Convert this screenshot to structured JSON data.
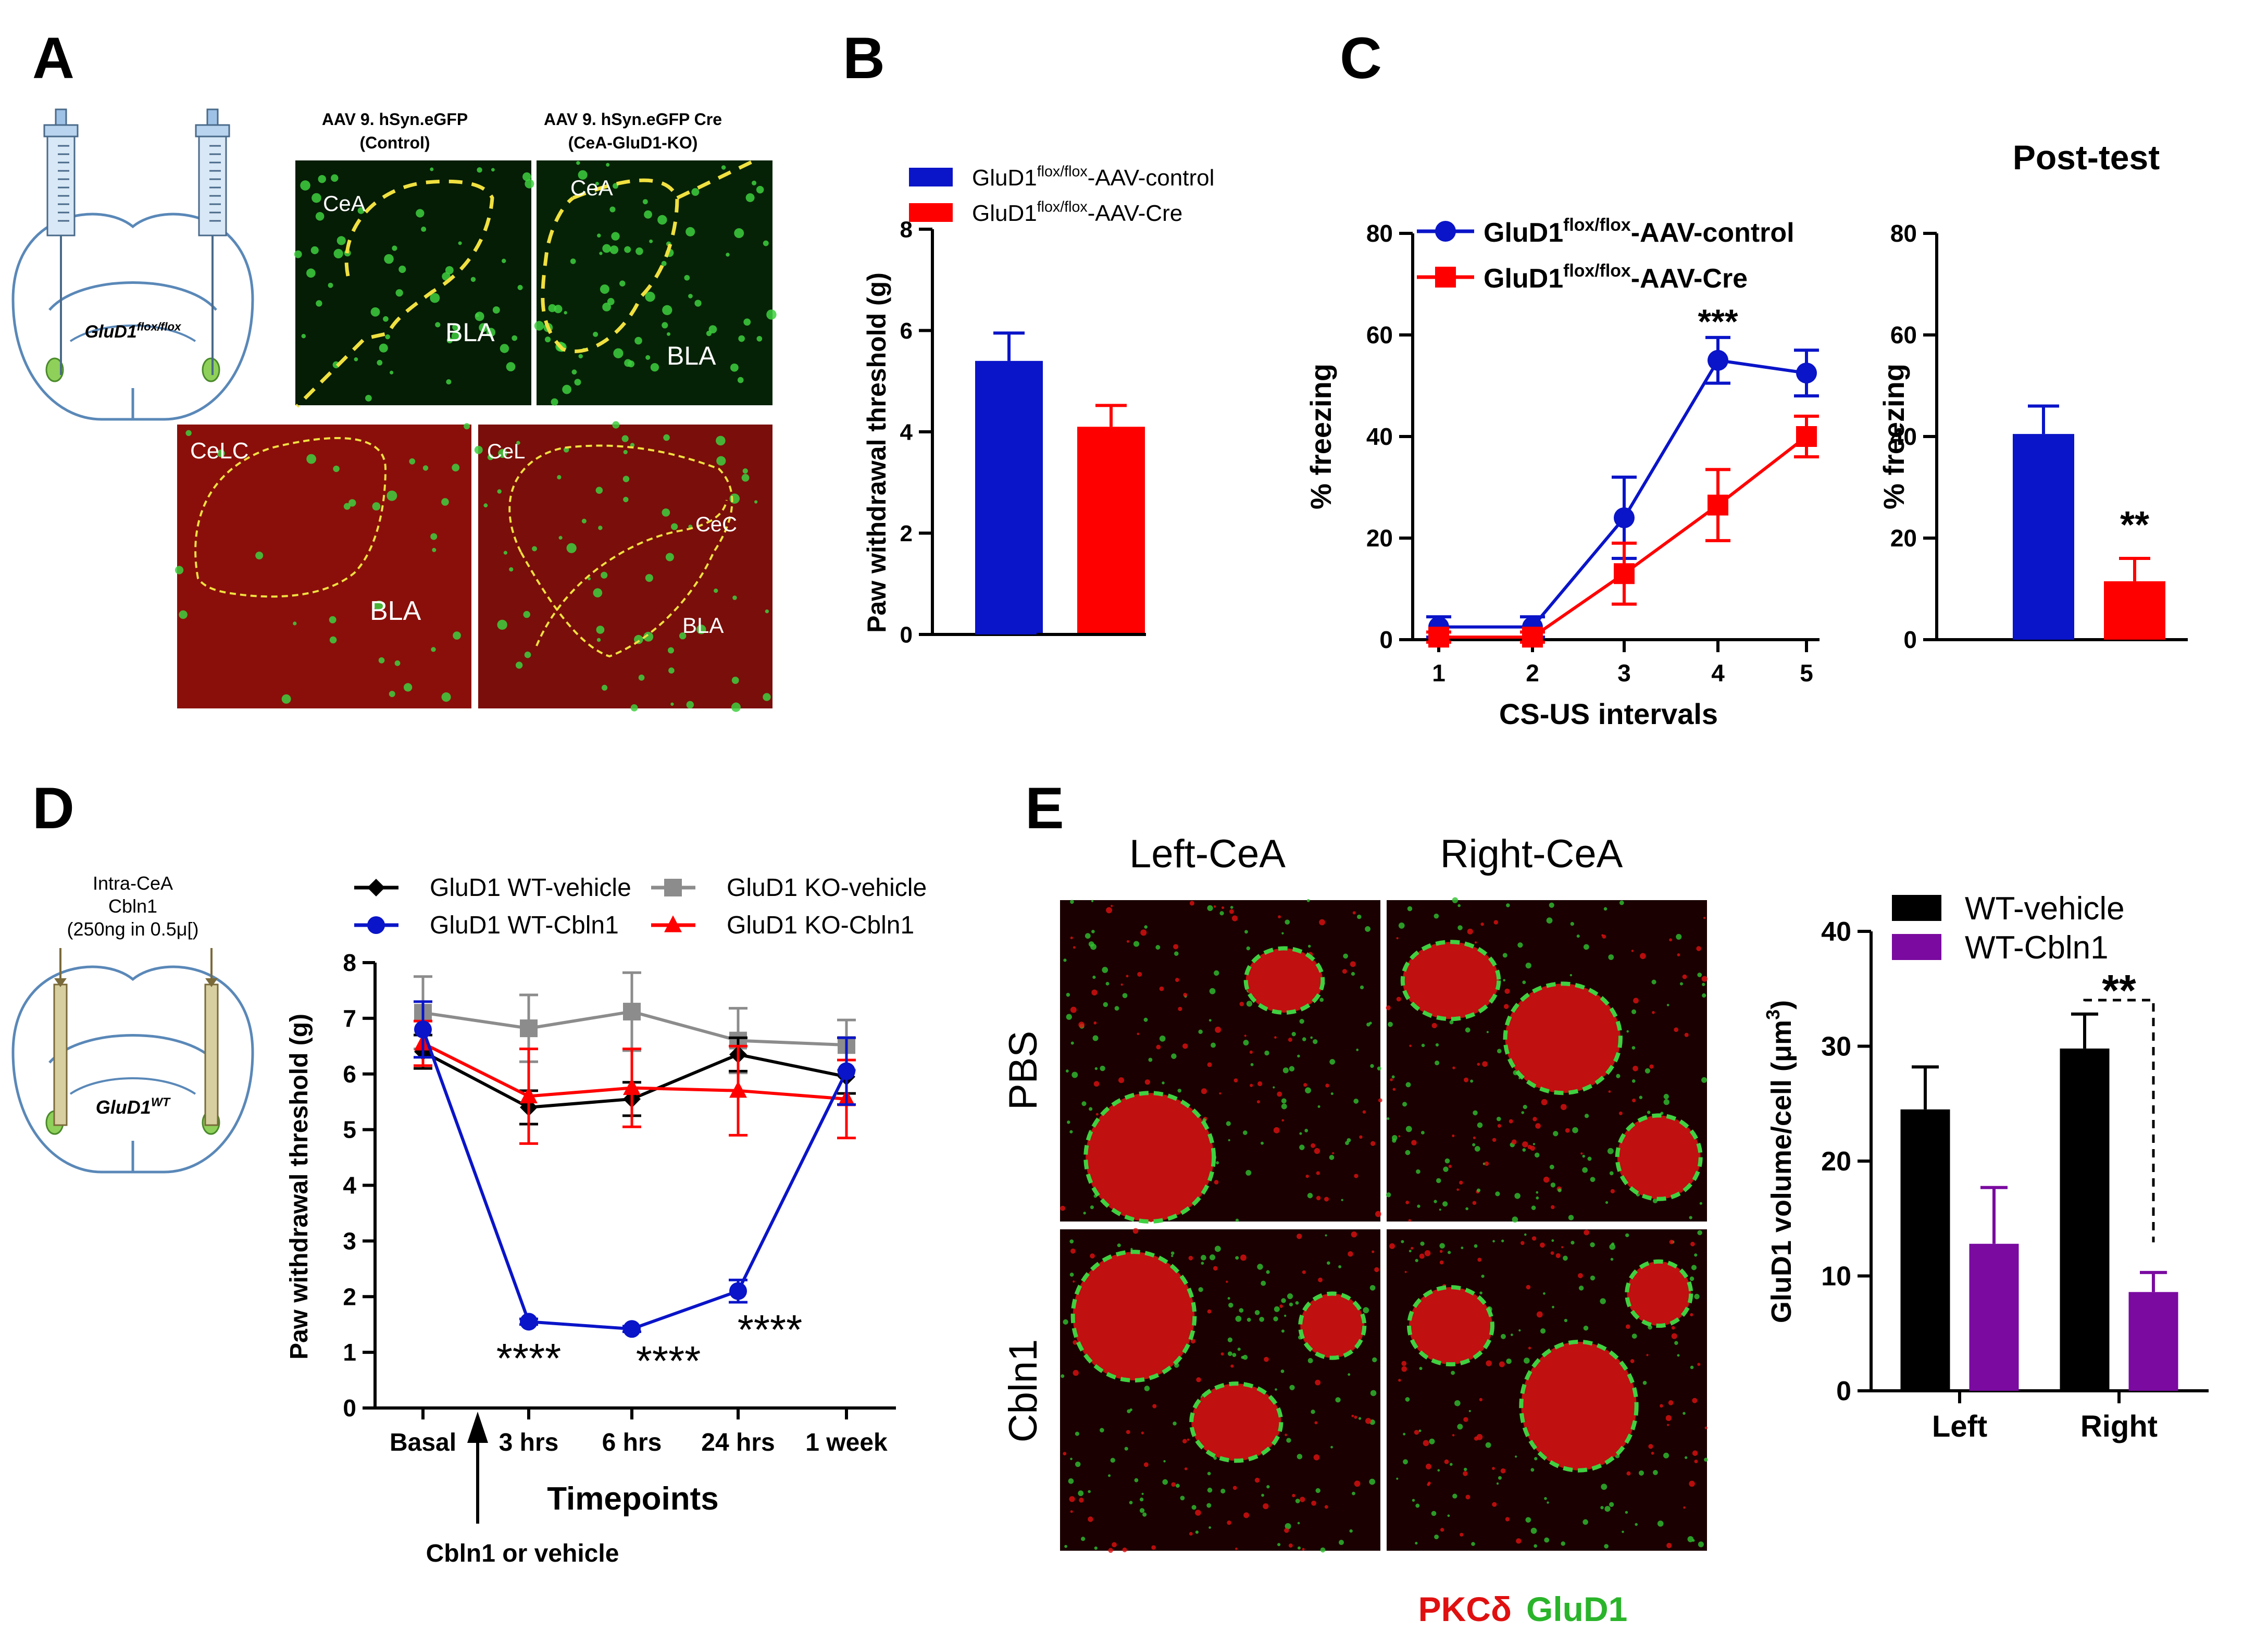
{
  "panels": {
    "A": {
      "letter": "A",
      "headers": [
        "AAV 9. hSyn.eGFP",
        "(Control)",
        "AAV 9. hSyn.eGFP Cre",
        "(CeA-GluD1-KO)"
      ],
      "brain_label": "GluD1",
      "brain_label_sup": "flox/flox",
      "image_labels": [
        "CeA",
        "BLA",
        "CeA",
        "BLA",
        "CeLC",
        "BLA",
        "CeL",
        "CeC",
        "BLA"
      ]
    },
    "B": {
      "letter": "B"
    },
    "C": {
      "letter": "C",
      "post_title": "Post-test"
    },
    "D": {
      "letter": "D",
      "injection_text": [
        "Intra-CeA",
        "Cbln1",
        "(250ng in 0.5μ[)"
      ],
      "brain_label": "GluD1",
      "brain_label_sup": "WT",
      "arrow_label": "Cbln1 or vehicle"
    },
    "E": {
      "letter": "E",
      "column_labels": [
        "Left-CeA",
        "Right-CeA"
      ],
      "row_labels": [
        "PBS",
        "Cbln1"
      ],
      "stain_red": "PKCδ",
      "stain_green": "GluD1"
    }
  },
  "colors": {
    "blue": "#0a14c8",
    "red": "#ff0000",
    "black": "#000000",
    "grey": "#8c8c8c",
    "purple": "#7a0aa0",
    "yellow": "#f0e040",
    "green": "#2ed92e"
  },
  "chart_data": [
    {
      "id": "B",
      "type": "bar",
      "title": "",
      "xlabel": "",
      "ylabel": "Paw withdrawal threshold (g)",
      "ylim": [
        0,
        8
      ],
      "yticks": [
        0,
        2,
        4,
        6,
        8
      ],
      "series": [
        {
          "name": "GluD1",
          "sup": "flox/flox",
          "suffix": "-AAV-control",
          "value": 5.4,
          "error": 0.55,
          "color": "#0a14c8"
        },
        {
          "name": "GluD1",
          "sup": "flox/flox",
          "suffix": "-AAV-Cre",
          "value": 4.1,
          "error": 0.42,
          "color": "#ff0000"
        }
      ]
    },
    {
      "id": "C-line",
      "type": "line",
      "title": "",
      "xlabel": "CS-US intervals",
      "ylabel": "% freezing",
      "x": [
        1,
        2,
        3,
        4,
        5
      ],
      "ylim": [
        0,
        80
      ],
      "yticks": [
        0,
        20,
        40,
        60,
        80
      ],
      "series": [
        {
          "name": "GluD1",
          "sup": "flox/flox",
          "suffix": "-AAV-control",
          "values": [
            2.5,
            2.5,
            24,
            55,
            52.5
          ],
          "errors": [
            2,
            2,
            8,
            4.5,
            4.5
          ],
          "color": "#0a14c8",
          "marker": "circle"
        },
        {
          "name": "GluD1",
          "sup": "flox/flox",
          "suffix": "-AAV-Cre",
          "values": [
            0.5,
            0.5,
            13,
            26.5,
            40
          ],
          "errors": [
            1,
            1,
            6,
            7,
            4
          ],
          "color": "#ff0000",
          "marker": "square"
        }
      ],
      "annotations": [
        {
          "text": "***",
          "x": 4
        }
      ]
    },
    {
      "id": "C-post",
      "type": "bar",
      "title": "Post-test",
      "xlabel": "",
      "ylabel": "% freezing",
      "ylim": [
        0,
        80
      ],
      "yticks": [
        0,
        20,
        40,
        60,
        80
      ],
      "values": [
        40.5,
        11.5
      ],
      "errors": [
        5.5,
        4.5
      ],
      "colors": [
        "#0a14c8",
        "#ff0000"
      ],
      "annotations": [
        {
          "text": "**",
          "bar": 2
        }
      ]
    },
    {
      "id": "D",
      "type": "line",
      "title": "",
      "xlabel": "Timepoints",
      "ylabel": "Paw withdrawal threshold (g)",
      "categories": [
        "Basal",
        "3 hrs",
        "6 hrs",
        "24 hrs",
        "1 week"
      ],
      "ylim": [
        0,
        8
      ],
      "yticks": [
        0,
        1,
        2,
        3,
        4,
        5,
        6,
        7,
        8
      ],
      "series": [
        {
          "name": "GluD1 WT-vehicle",
          "values": [
            6.4,
            5.4,
            5.55,
            6.35,
            5.95
          ],
          "errors": [
            0.3,
            0.3,
            0.3,
            0.3,
            0.3
          ],
          "color": "#000000",
          "marker": "diamond"
        },
        {
          "name": "GluD1 WT-Cbln1",
          "values": [
            6.8,
            1.55,
            1.42,
            2.1,
            6.05
          ],
          "errors": [
            0.5,
            0.05,
            0.05,
            0.2,
            0.6
          ],
          "color": "#0a14c8",
          "marker": "circle"
        },
        {
          "name": "GluD1 KO-vehicle",
          "values": [
            7.1,
            6.82,
            7.12,
            6.6,
            6.52
          ],
          "errors": [
            0.65,
            0.6,
            0.7,
            0.58,
            0.45
          ],
          "color": "#8c8c8c",
          "marker": "square"
        },
        {
          "name": "GluD1 KO-Cbln1",
          "values": [
            6.55,
            5.6,
            5.75,
            5.7,
            5.55
          ],
          "errors": [
            0.4,
            0.85,
            0.7,
            0.8,
            0.7
          ],
          "color": "#ff0000",
          "marker": "triangle"
        }
      ],
      "annotations": [
        {
          "text": "****",
          "x": "3 hrs"
        },
        {
          "text": "****",
          "x": "6 hrs"
        },
        {
          "text": "****",
          "x": "24 hrs"
        }
      ]
    },
    {
      "id": "E",
      "type": "bar",
      "title": "",
      "xlabel": "",
      "ylabel": "GluD1 volume/cell (μm",
      "ylabel_sup": "3",
      "ylabel_end": ")",
      "categories": [
        "Left",
        "Right"
      ],
      "ylim": [
        0,
        40
      ],
      "yticks": [
        0,
        10,
        20,
        30,
        40
      ],
      "series": [
        {
          "name": "WT-vehicle",
          "values": [
            24.5,
            29.8
          ],
          "errors": [
            3.7,
            3.0
          ],
          "color": "#000000"
        },
        {
          "name": "WT-Cbln1",
          "values": [
            12.8,
            8.6
          ],
          "errors": [
            4.9,
            1.7
          ],
          "color": "#7a0aa0"
        }
      ],
      "annotations": [
        {
          "text": "**",
          "category": "Right"
        }
      ]
    }
  ]
}
